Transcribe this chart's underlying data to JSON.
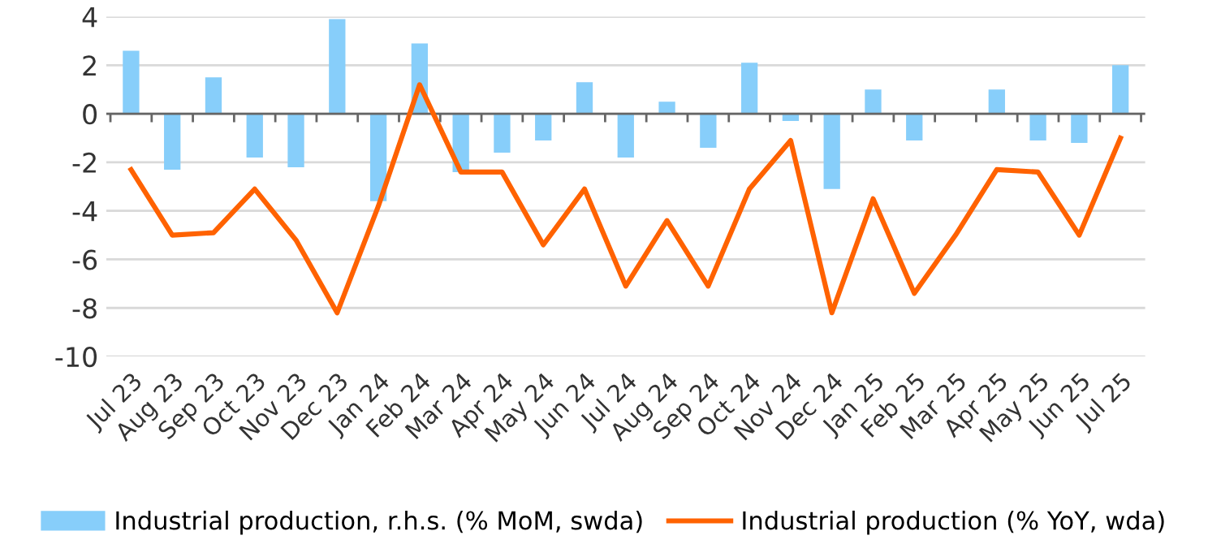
{
  "chart_data": {
    "type": "bar",
    "categories": [
      "Jul 23",
      "Aug 23",
      "Sep 23",
      "Oct 23",
      "Nov 23",
      "Dec 23",
      "Jan 24",
      "Feb 24",
      "Mar 24",
      "Apr 24",
      "May 24",
      "Jun 24",
      "Jul 24",
      "Aug 24",
      "Sep 24",
      "Oct 24",
      "Nov 24",
      "Dec 24",
      "Jan 25",
      "Feb 25",
      "Mar 25",
      "Apr 25",
      "May 25",
      "Jun 25",
      "Jul 25"
    ],
    "series": [
      {
        "name": "Industrial production, r.h.s. (% MoM, swda)",
        "color": "#87cefa",
        "values": [
          2.6,
          -2.3,
          1.5,
          -1.8,
          -2.2,
          3.9,
          -3.6,
          2.9,
          -2.4,
          -1.6,
          -1.1,
          1.3,
          -1.8,
          0.5,
          -1.4,
          2.1,
          -0.3,
          -3.1,
          1.0,
          -1.1,
          0,
          1.0,
          -1.1,
          -1.2,
          2.0
        ]
      },
      {
        "name": "Industrial production (% YoY, wda)",
        "type": "line",
        "color": "#ff6200",
        "values": [
          -2.3,
          -5.0,
          -4.9,
          -3.1,
          -5.2,
          -8.2,
          -3.8,
          1.2,
          -2.4,
          -2.4,
          -5.4,
          -3.1,
          -7.1,
          -4.4,
          -7.1,
          -3.1,
          -1.1,
          -8.2,
          -3.5,
          -7.4,
          -5.0,
          -2.3,
          -2.4,
          -5.0,
          -1.0
        ]
      }
    ],
    "ylim": [
      -10,
      4
    ],
    "yticks": [
      -10,
      -8,
      -6,
      -4,
      -2,
      0,
      2,
      4
    ],
    "grid": "y",
    "legend": "bottom"
  }
}
